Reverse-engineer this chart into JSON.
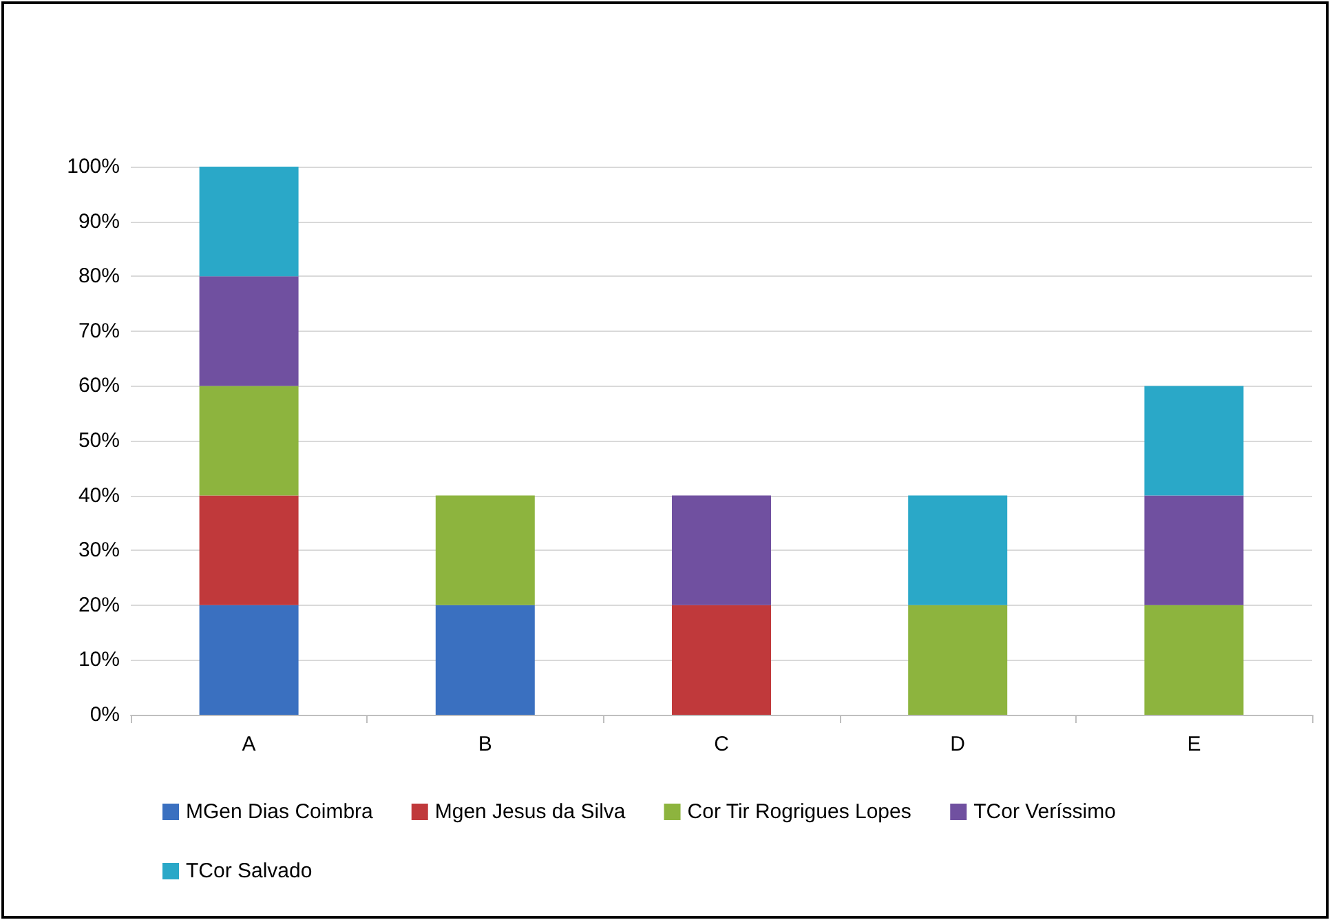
{
  "chart_data": {
    "type": "bar",
    "stacked": true,
    "categories": [
      "A",
      "B",
      "C",
      "D",
      "E"
    ],
    "series": [
      {
        "name": "MGen Dias Coimbra",
        "color": "#3a70c0",
        "values": [
          20,
          20,
          null,
          null,
          null
        ]
      },
      {
        "name": "Mgen Jesus da Silva",
        "color": "#c0393b",
        "values": [
          20,
          null,
          20,
          null,
          null
        ]
      },
      {
        "name": "Cor Tir Rogrigues Lopes",
        "color": "#8db43e",
        "values": [
          20,
          20,
          null,
          20,
          20
        ]
      },
      {
        "name": "TCor Veríssimo",
        "color": "#7050a0",
        "values": [
          20,
          null,
          20,
          null,
          20
        ]
      },
      {
        "name": "TCor Salvado",
        "color": "#2aa8c8",
        "values": [
          20,
          null,
          null,
          20,
          20
        ]
      }
    ],
    "ylim": [
      0,
      100
    ],
    "yticks": [
      {
        "value": 0,
        "label": "0%"
      },
      {
        "value": 10,
        "label": "10%"
      },
      {
        "value": 20,
        "label": "20%"
      },
      {
        "value": 30,
        "label": "30%"
      },
      {
        "value": 40,
        "label": "40%"
      },
      {
        "value": 50,
        "label": "50%"
      },
      {
        "value": 60,
        "label": "60%"
      },
      {
        "value": 70,
        "label": "70%"
      },
      {
        "value": 80,
        "label": "80%"
      },
      {
        "value": 90,
        "label": "90%"
      },
      {
        "value": 100,
        "label": "100%"
      }
    ],
    "grid": "y",
    "legend": "bottom"
  }
}
